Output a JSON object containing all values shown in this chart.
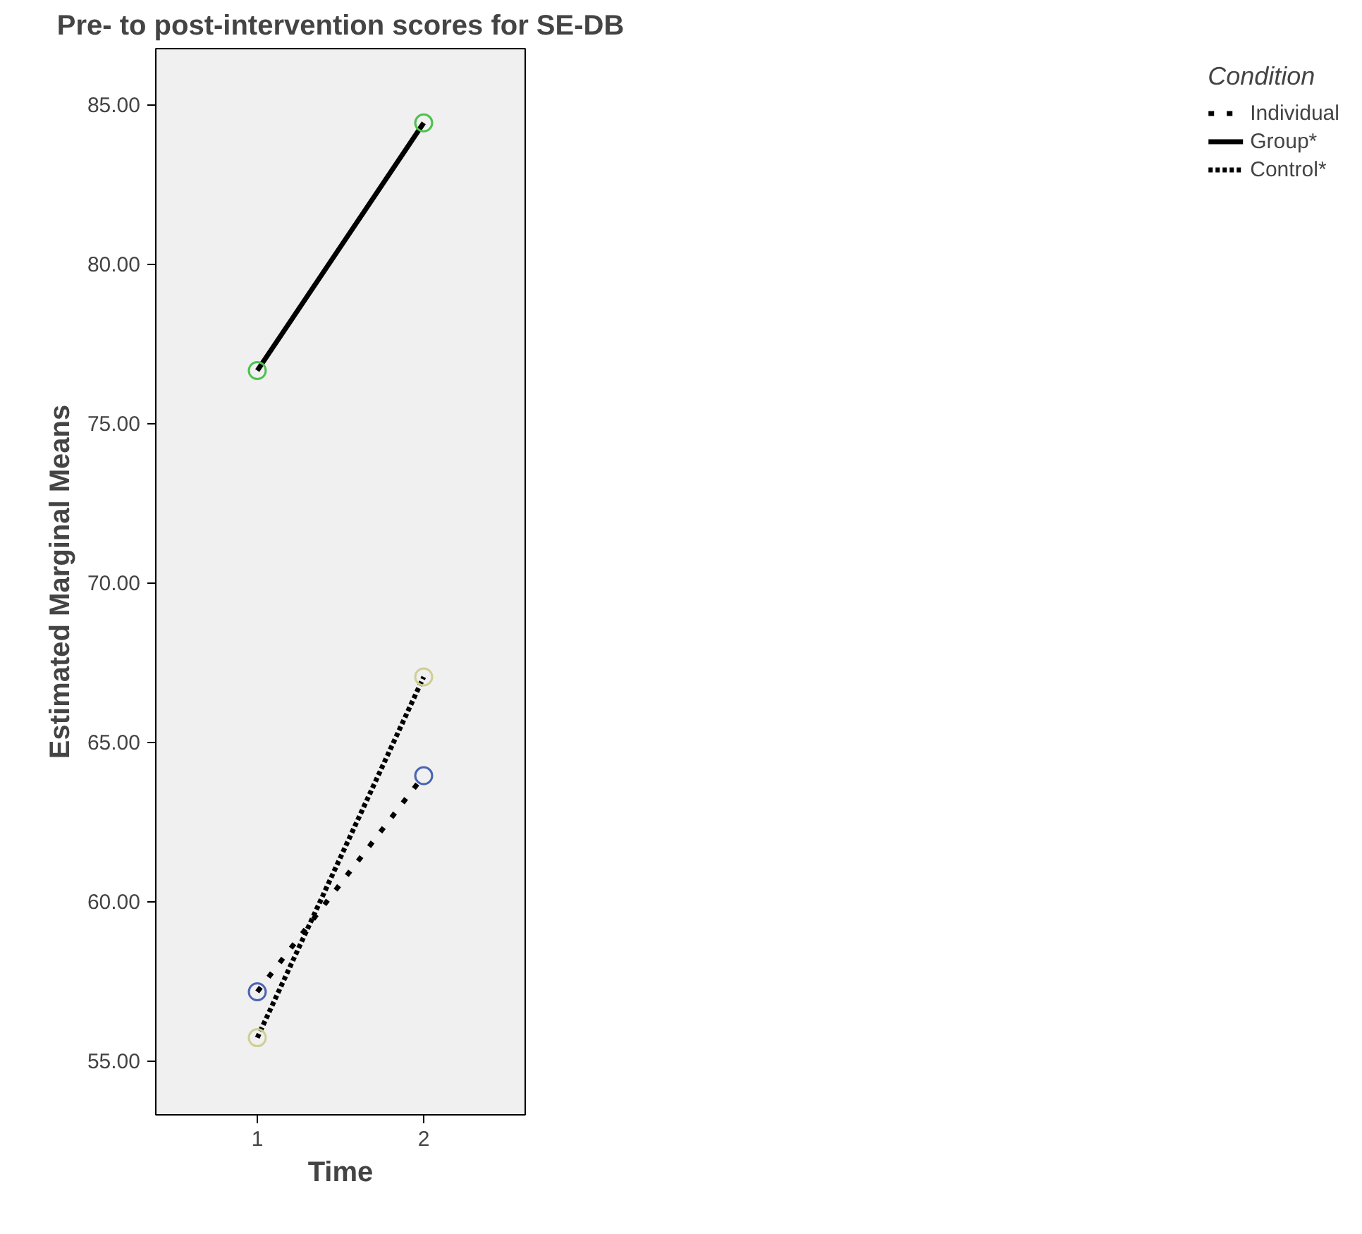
{
  "chart_data": {
    "type": "line",
    "title": "Pre- to post-intervention scores for SE-DB",
    "xlabel": "Time",
    "ylabel": "Estimated Marginal Means",
    "legend_title": "Condition",
    "x": [
      1,
      2
    ],
    "xlim": [
      0.39,
      2.61
    ],
    "xticks": [
      1,
      2
    ],
    "ylim": [
      53.3,
      86.75
    ],
    "yticks": [
      {
        "value": 55,
        "label": "55.00"
      },
      {
        "value": 60,
        "label": "60.00"
      },
      {
        "value": 65,
        "label": "65.00"
      },
      {
        "value": 70,
        "label": "70.00"
      },
      {
        "value": 75,
        "label": "75.00"
      },
      {
        "value": 80,
        "label": "80.00"
      },
      {
        "value": 85,
        "label": "85.00"
      }
    ],
    "series": [
      {
        "name": "Individual",
        "color": "#000000",
        "colors": [
          "#4a64b4",
          "#4a64b4"
        ],
        "line_style": "dashed",
        "values": [
          57.16,
          63.94
        ]
      },
      {
        "name": "Group*",
        "color": "#000000",
        "colors": [
          "#4cc24c",
          "#4cc24c"
        ],
        "line_style": "solid",
        "values": [
          76.65,
          84.42
        ]
      },
      {
        "name": "Control*",
        "color": "#000000",
        "colors": [
          "#cfcf94",
          "#cfcf94"
        ],
        "line_style": "dotted",
        "values": [
          55.72,
          67.04
        ]
      }
    ],
    "marker": "circle",
    "grid": false,
    "legend": "right"
  }
}
